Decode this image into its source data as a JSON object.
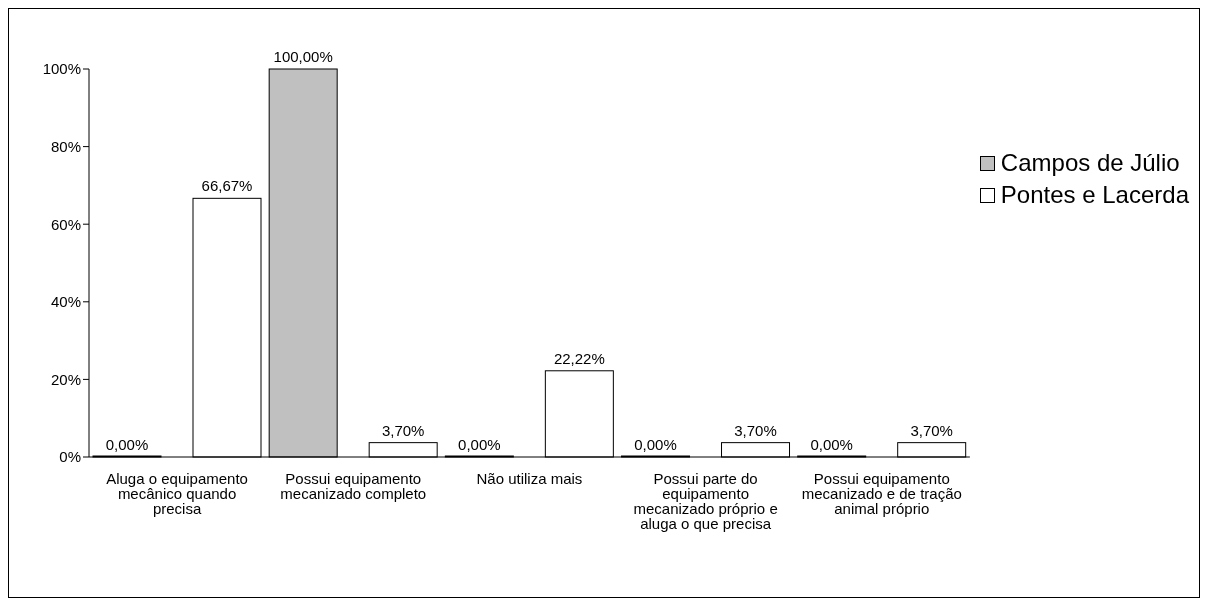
{
  "chart_data": {
    "type": "bar",
    "categories": [
      "Aluga o equipamento mecânico quando precisa",
      "Possui equipamento mecanizado completo",
      "Não utiliza mais",
      "Possui parte do equipamento mecanizado próprio e aluga o que precisa",
      "Possui equipamento mecanizado e de tração animal próprio"
    ],
    "series": [
      {
        "name": "Campos de Júlio",
        "color": "#c0c0c0",
        "values": [
          0,
          100,
          0,
          0,
          0
        ],
        "value_labels": [
          "0,00%",
          "100,00%",
          "0,00%",
          "0,00%",
          "0,00%"
        ]
      },
      {
        "name": "Pontes e Lacerda",
        "color": "#ffffff",
        "values": [
          66.67,
          3.7,
          22.22,
          3.7,
          3.7
        ],
        "value_labels": [
          "66,67%",
          "3,70%",
          "22,22%",
          "3,70%",
          "3,70%"
        ]
      }
    ],
    "ylim": [
      0,
      100
    ],
    "yticks": [
      {
        "value": 0,
        "label": "0%"
      },
      {
        "value": 20,
        "label": "20%"
      },
      {
        "value": 40,
        "label": "40%"
      },
      {
        "value": 60,
        "label": "60%"
      },
      {
        "value": 80,
        "label": "80%"
      },
      {
        "value": 100,
        "label": "100%"
      }
    ],
    "grid": false,
    "legend": "right"
  }
}
